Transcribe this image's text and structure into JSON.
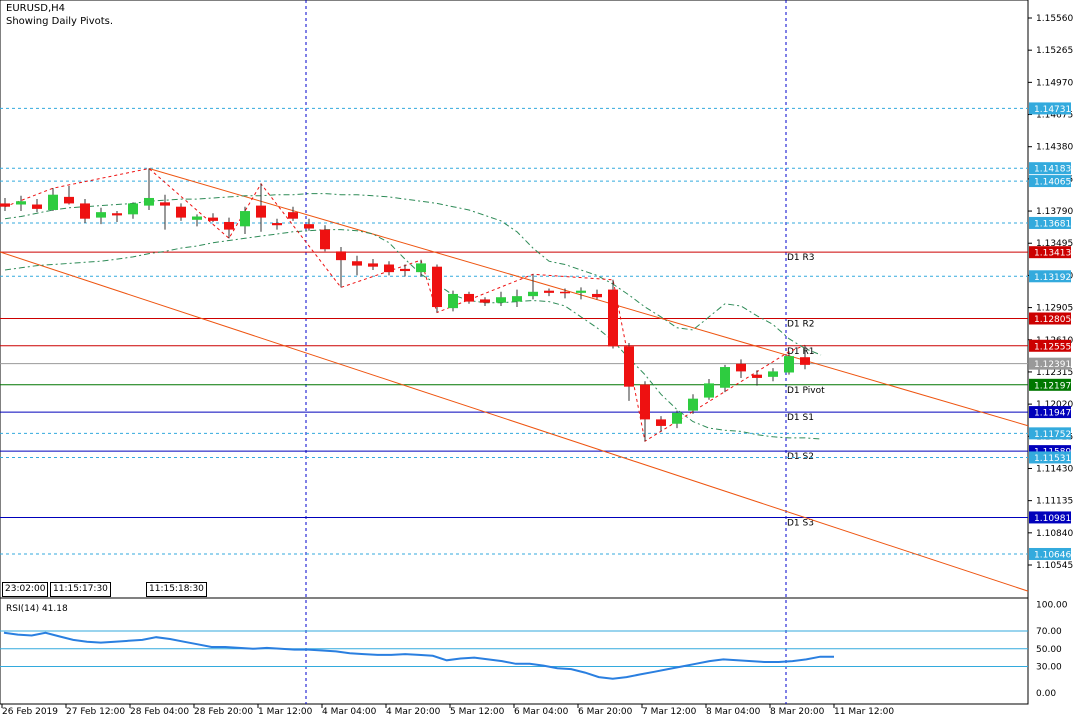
{
  "header": {
    "symbol": "EURUSD,H4",
    "subtitle": "Showing Daily Pivots."
  },
  "time_boxes": [
    "23:02:00",
    "11:15:17:30",
    "11:15:18:30"
  ],
  "colors": {
    "bull": "#2ecc40",
    "bear": "#ee1111",
    "resistance": "#cc0000",
    "pivot": "#007700",
    "support": "#0000bb",
    "cyan_level": "#33aadd",
    "channel": "#ee5511",
    "rsi": "#2a7fe0",
    "ma": "#2e8b57"
  },
  "chart_data": {
    "type": "candlestick",
    "title": "EURUSD,H4",
    "price_ticks": [
      "1.15560",
      "1.15265",
      "1.14970",
      "1.14675",
      "1.14380",
      "1.14085",
      "1.13790",
      "1.13495",
      "1.13200",
      "1.12905",
      "1.12610",
      "1.12315",
      "1.12020",
      "1.11725",
      "1.11430",
      "1.11135",
      "1.10840",
      "1.10545"
    ],
    "x_ticks": [
      "26 Feb 2019",
      "27 Feb 12:00",
      "28 Feb 04:00",
      "28 Feb 20:00",
      "1 Mar 12:00",
      "4 Mar 04:00",
      "4 Mar 20:00",
      "5 Mar 12:00",
      "6 Mar 04:00",
      "6 Mar 20:00",
      "7 Mar 12:00",
      "8 Mar 04:00",
      "8 Mar 20:00",
      "11 Mar 12:00"
    ],
    "candles": [
      {
        "o": 1.1386,
        "h": 1.1391,
        "l": 1.1379,
        "c": 1.1383
      },
      {
        "o": 1.1385,
        "h": 1.1393,
        "l": 1.1379,
        "c": 1.1388
      },
      {
        "o": 1.1385,
        "h": 1.139,
        "l": 1.1378,
        "c": 1.1381
      },
      {
        "o": 1.138,
        "h": 1.14,
        "l": 1.1379,
        "c": 1.1394
      },
      {
        "o": 1.1392,
        "h": 1.1402,
        "l": 1.1385,
        "c": 1.1386
      },
      {
        "o": 1.1386,
        "h": 1.139,
        "l": 1.1368,
        "c": 1.1372
      },
      {
        "o": 1.1373,
        "h": 1.1382,
        "l": 1.1367,
        "c": 1.1378
      },
      {
        "o": 1.1377,
        "h": 1.1379,
        "l": 1.1369,
        "c": 1.1375
      },
      {
        "o": 1.1376,
        "h": 1.1387,
        "l": 1.1372,
        "c": 1.1386
      },
      {
        "o": 1.1384,
        "h": 1.1418,
        "l": 1.138,
        "c": 1.1391
      },
      {
        "o": 1.1387,
        "h": 1.1394,
        "l": 1.1362,
        "c": 1.1384
      },
      {
        "o": 1.1383,
        "h": 1.1386,
        "l": 1.137,
        "c": 1.1373
      },
      {
        "o": 1.1371,
        "h": 1.1376,
        "l": 1.1365,
        "c": 1.1374
      },
      {
        "o": 1.1373,
        "h": 1.1377,
        "l": 1.1369,
        "c": 1.137
      },
      {
        "o": 1.1369,
        "h": 1.1373,
        "l": 1.1354,
        "c": 1.1362
      },
      {
        "o": 1.1365,
        "h": 1.1383,
        "l": 1.1358,
        "c": 1.1379
      },
      {
        "o": 1.1384,
        "h": 1.1404,
        "l": 1.136,
        "c": 1.1373
      },
      {
        "o": 1.1368,
        "h": 1.1372,
        "l": 1.1362,
        "c": 1.1366
      },
      {
        "o": 1.1378,
        "h": 1.1383,
        "l": 1.137,
        "c": 1.1372
      },
      {
        "o": 1.1367,
        "h": 1.1372,
        "l": 1.1361,
        "c": 1.1363
      },
      {
        "o": 1.1362,
        "h": 1.1366,
        "l": 1.1342,
        "c": 1.1344
      },
      {
        "o": 1.1342,
        "h": 1.1346,
        "l": 1.1309,
        "c": 1.1334
      },
      {
        "o": 1.1333,
        "h": 1.1338,
        "l": 1.132,
        "c": 1.1329
      },
      {
        "o": 1.1331,
        "h": 1.1335,
        "l": 1.1325,
        "c": 1.1328
      },
      {
        "o": 1.133,
        "h": 1.1333,
        "l": 1.132,
        "c": 1.1323
      },
      {
        "o": 1.1326,
        "h": 1.133,
        "l": 1.1319,
        "c": 1.1324
      },
      {
        "o": 1.1323,
        "h": 1.1334,
        "l": 1.1319,
        "c": 1.1331
      },
      {
        "o": 1.1328,
        "h": 1.133,
        "l": 1.1286,
        "c": 1.1291
      },
      {
        "o": 1.129,
        "h": 1.1306,
        "l": 1.1287,
        "c": 1.1303
      },
      {
        "o": 1.1303,
        "h": 1.1305,
        "l": 1.1294,
        "c": 1.1296
      },
      {
        "o": 1.1298,
        "h": 1.13,
        "l": 1.1292,
        "c": 1.1295
      },
      {
        "o": 1.1295,
        "h": 1.1305,
        "l": 1.1292,
        "c": 1.13
      },
      {
        "o": 1.1296,
        "h": 1.1307,
        "l": 1.1291,
        "c": 1.1301
      },
      {
        "o": 1.1301,
        "h": 1.1321,
        "l": 1.1298,
        "c": 1.1305
      },
      {
        "o": 1.1306,
        "h": 1.1308,
        "l": 1.1301,
        "c": 1.1304
      },
      {
        "o": 1.1305,
        "h": 1.1308,
        "l": 1.1299,
        "c": 1.1304
      },
      {
        "o": 1.1304,
        "h": 1.1309,
        "l": 1.1298,
        "c": 1.1306
      },
      {
        "o": 1.1303,
        "h": 1.1307,
        "l": 1.1298,
        "c": 1.13
      },
      {
        "o": 1.1307,
        "h": 1.1316,
        "l": 1.1253,
        "c": 1.1255
      },
      {
        "o": 1.1255,
        "h": 1.1258,
        "l": 1.1205,
        "c": 1.1218
      },
      {
        "o": 1.122,
        "h": 1.1223,
        "l": 1.1168,
        "c": 1.1188
      },
      {
        "o": 1.1188,
        "h": 1.1191,
        "l": 1.1177,
        "c": 1.1182
      },
      {
        "o": 1.1184,
        "h": 1.1196,
        "l": 1.118,
        "c": 1.1194
      },
      {
        "o": 1.1196,
        "h": 1.1211,
        "l": 1.1193,
        "c": 1.1207
      },
      {
        "o": 1.1208,
        "h": 1.1225,
        "l": 1.1206,
        "c": 1.1221
      },
      {
        "o": 1.1217,
        "h": 1.1238,
        "l": 1.1213,
        "c": 1.1236
      },
      {
        "o": 1.1239,
        "h": 1.1243,
        "l": 1.1226,
        "c": 1.1232
      },
      {
        "o": 1.1229,
        "h": 1.1233,
        "l": 1.1219,
        "c": 1.1226
      },
      {
        "o": 1.1227,
        "h": 1.1235,
        "l": 1.1223,
        "c": 1.1232
      },
      {
        "o": 1.1231,
        "h": 1.125,
        "l": 1.1229,
        "c": 1.1246
      },
      {
        "o": 1.1245,
        "h": 1.1256,
        "l": 1.1234,
        "c": 1.1238
      }
    ],
    "levels": [
      {
        "price": 1.14731,
        "label": "1.14731",
        "kind": "cyan"
      },
      {
        "price": 1.14183,
        "label": "1.14183",
        "kind": "cyan"
      },
      {
        "price": 1.14065,
        "label": "1.14065",
        "kind": "cyan"
      },
      {
        "price": 1.13681,
        "label": "1.13681",
        "kind": "cyan"
      },
      {
        "price": 1.13413,
        "label": "1.13413",
        "kind": "red",
        "tag": "D1 R3"
      },
      {
        "price": 1.13192,
        "label": "1.13192",
        "kind": "cyan"
      },
      {
        "price": 1.12805,
        "label": "1.12805",
        "kind": "red",
        "tag": "D1 R2"
      },
      {
        "price": 1.12555,
        "label": "1.12555",
        "kind": "red",
        "tag": "D1 R1"
      },
      {
        "price": 1.12391,
        "label": "1.12391",
        "kind": "gray"
      },
      {
        "price": 1.12197,
        "label": "1.12197",
        "kind": "green",
        "tag": "D1 Pivot"
      },
      {
        "price": 1.11947,
        "label": "1.11947",
        "kind": "blue",
        "tag": "D1 S1"
      },
      {
        "price": 1.11752,
        "label": "1.11752",
        "kind": "cyan"
      },
      {
        "price": 1.11589,
        "label": "1.11589",
        "kind": "blue",
        "tag": "D1 S2"
      },
      {
        "price": 1.11531,
        "label": "1.11531",
        "kind": "cyan"
      },
      {
        "price": 1.10981,
        "label": "1.10981",
        "kind": "blue",
        "tag": "D1 S3"
      },
      {
        "price": 1.10646,
        "label": "1.10646",
        "kind": "cyan"
      }
    ],
    "channel": {
      "upper": [
        {
          "bar": 9,
          "price": 1.1418
        },
        {
          "bar": 50,
          "price": 1.1242
        }
      ],
      "lower": [
        {
          "bar": 0,
          "price": 1.134
        },
        {
          "bar": 50,
          "price": 1.1098
        }
      ]
    },
    "zigzag": [
      {
        "bar": 0,
        "price": 1.1383
      },
      {
        "bar": 3,
        "price": 1.14
      },
      {
        "bar": 9,
        "price": 1.1418
      },
      {
        "bar": 14,
        "price": 1.1354
      },
      {
        "bar": 16,
        "price": 1.1404
      },
      {
        "bar": 21,
        "price": 1.1309
      },
      {
        "bar": 26,
        "price": 1.1334
      },
      {
        "bar": 27,
        "price": 1.1286
      },
      {
        "bar": 33,
        "price": 1.1321
      },
      {
        "bar": 38,
        "price": 1.1316
      },
      {
        "bar": 40,
        "price": 1.1168
      },
      {
        "bar": 49,
        "price": 1.125
      },
      {
        "bar": 50,
        "price": 1.1256
      }
    ],
    "ma_upper": [
      1.1372,
      1.1374,
      1.1377,
      1.138,
      1.1382,
      1.1383,
      1.1384,
      1.1385,
      1.1386,
      1.1388,
      1.1389,
      1.139,
      1.139,
      1.1391,
      1.1392,
      1.1393,
      1.1393,
      1.1394,
      1.1394,
      1.1395,
      1.1395,
      1.1394,
      1.1394,
      1.1393,
      1.1392,
      1.139,
      1.1388,
      1.1386,
      1.1383,
      1.138,
      1.1375,
      1.137,
      1.136,
      1.1345,
      1.1333,
      1.133,
      1.1325,
      1.132,
      1.1312,
      1.1302,
      1.1291,
      1.1282,
      1.1272,
      1.127,
      1.1282,
      1.1294,
      1.1292,
      1.1283,
      1.1275,
      1.1262,
      1.1253,
      1.1247
    ],
    "ma_lower": [
      1.1325,
      1.1327,
      1.1329,
      1.133,
      1.1331,
      1.1332,
      1.1333,
      1.1335,
      1.1337,
      1.134,
      1.1342,
      1.1345,
      1.1347,
      1.135,
      1.1352,
      1.1354,
      1.1356,
      1.1358,
      1.136,
      1.1361,
      1.1362,
      1.1362,
      1.1361,
      1.1358,
      1.135,
      1.1335,
      1.1321,
      1.1312,
      1.1302,
      1.1297,
      1.1295,
      1.1295,
      1.1296,
      1.1297,
      1.1296,
      1.1292,
      1.1282,
      1.1272,
      1.126,
      1.1244,
      1.1229,
      1.1211,
      1.1197,
      1.1186,
      1.118,
      1.1178,
      1.1177,
      1.1174,
      1.1172,
      1.1171,
      1.1171,
      1.117
    ],
    "rsi": {
      "label": "RSI(14) 41.18",
      "levels": [
        70,
        50,
        30
      ],
      "ticks": [
        "100.00",
        "70.00",
        "50.00",
        "30.00",
        "0.00"
      ],
      "values": [
        68,
        66,
        65,
        68,
        64,
        60,
        58,
        57,
        58,
        59,
        60,
        63,
        61,
        58,
        55,
        52,
        52,
        51,
        50,
        51,
        50,
        49,
        49,
        48,
        47,
        45,
        44,
        43,
        43,
        44,
        43,
        42,
        37,
        39,
        40,
        38,
        36,
        33,
        33,
        31,
        28,
        27,
        23,
        18,
        16,
        18,
        21,
        24,
        27,
        30,
        33,
        36,
        38,
        37,
        36,
        35,
        35,
        36,
        38,
        41,
        41
      ]
    }
  }
}
